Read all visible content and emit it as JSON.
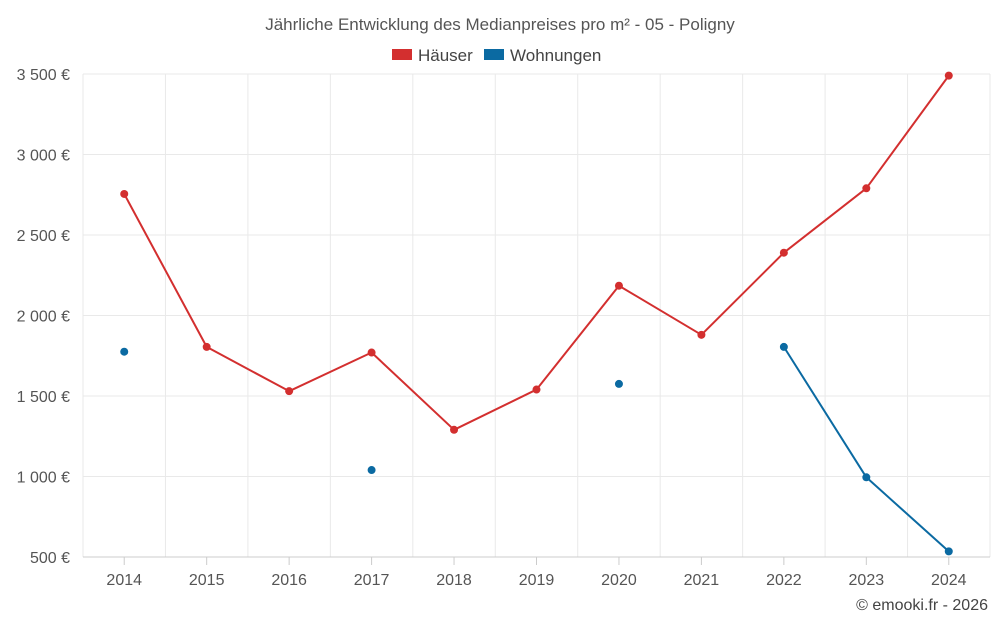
{
  "chart_data": {
    "type": "line",
    "title": "Jährliche Entwicklung des Medianpreises pro m² - 05 - Poligny",
    "xlabel": "",
    "ylabel": "",
    "categories": [
      "2014",
      "2015",
      "2016",
      "2017",
      "2018",
      "2019",
      "2020",
      "2021",
      "2022",
      "2023",
      "2024"
    ],
    "y_ticks": [
      500,
      1000,
      1500,
      2000,
      2500,
      3000,
      3500
    ],
    "y_tick_labels": [
      "500 €",
      "1 000 €",
      "1 500 €",
      "2 000 €",
      "2 500 €",
      "3 000 €",
      "3 500 €"
    ],
    "ylim": [
      500,
      3500
    ],
    "grid": true,
    "legend_position": "top-center",
    "series": [
      {
        "name": "Häuser",
        "color": "#d32f2f",
        "values": [
          2755,
          1805,
          1530,
          1770,
          1290,
          1540,
          2185,
          1880,
          2390,
          2790,
          3490
        ]
      },
      {
        "name": "Wohnungen",
        "color": "#0b6aa2",
        "values": [
          1775,
          null,
          null,
          1040,
          null,
          null,
          1575,
          null,
          1805,
          995,
          535
        ]
      }
    ]
  },
  "credit": "© emooki.fr - 2026"
}
